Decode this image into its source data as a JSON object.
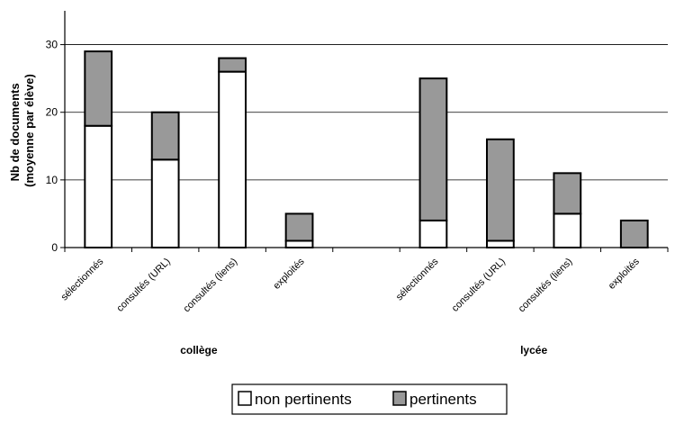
{
  "chart_data": {
    "type": "bar",
    "stacked": true,
    "ylabel_lines": [
      "Nb de documents",
      "(moyenne par élève)"
    ],
    "ylim": [
      0,
      35
    ],
    "yticks": [
      0,
      10,
      20,
      30
    ],
    "grid": true,
    "legend_position": "bottom",
    "colors": {
      "non_pertinents": "#ffffff",
      "pertinents": "#999999",
      "bar_stroke": "#000000"
    },
    "groups": [
      {
        "name": "collège",
        "categories": [
          "sélectionnés",
          "consultés (URL)",
          "consultés (liens)",
          "exploités"
        ],
        "series": [
          {
            "name": "non pertinents",
            "values": [
              18,
              13,
              26,
              1
            ]
          },
          {
            "name": "pertinents",
            "values": [
              11,
              7,
              2,
              4
            ]
          }
        ]
      },
      {
        "name": "lycée",
        "categories": [
          "sélectionnés",
          "consultés (URL)",
          "consultés (liens)",
          "exploités"
        ],
        "series": [
          {
            "name": "non pertinents",
            "values": [
              4,
              1,
              5,
              0
            ]
          },
          {
            "name": "pertinents",
            "values": [
              21,
              15,
              6,
              4
            ]
          }
        ]
      }
    ],
    "legend": [
      "non pertinents",
      "pertinents"
    ]
  }
}
